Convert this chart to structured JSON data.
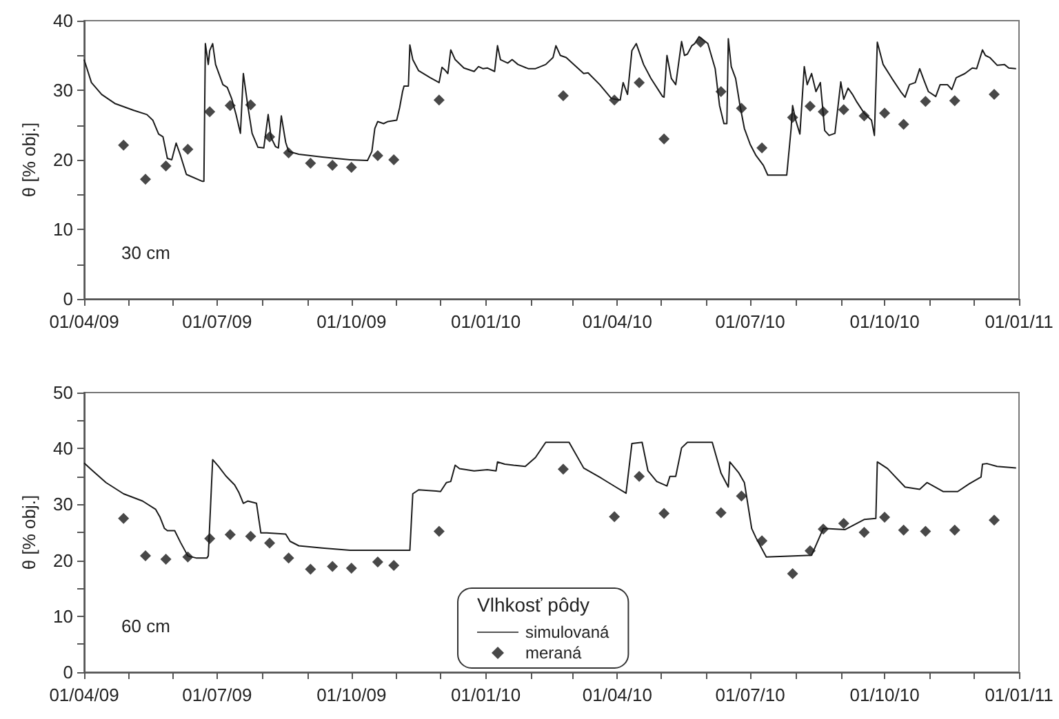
{
  "chart_data": [
    {
      "type": "line",
      "ylabel": "θ [% obj.]",
      "annotations": [
        "30 cm"
      ],
      "xlim": [
        "2009-04-01",
        "2011-01-01"
      ],
      "xticks": [
        {
          "value": "2009-04-01",
          "label": "01/04/09"
        },
        {
          "value": "2009-05-01",
          "label": null
        },
        {
          "value": "2009-06-01",
          "label": null
        },
        {
          "value": "2009-07-01",
          "label": "01/07/09"
        },
        {
          "value": "2009-08-01",
          "label": null
        },
        {
          "value": "2009-09-01",
          "label": null
        },
        {
          "value": "2009-10-01",
          "label": "01/10/09"
        },
        {
          "value": "2009-11-01",
          "label": null
        },
        {
          "value": "2009-12-01",
          "label": null
        },
        {
          "value": "2010-01-01",
          "label": "01/01/10"
        },
        {
          "value": "2010-02-01",
          "label": null
        },
        {
          "value": "2010-03-01",
          "label": null
        },
        {
          "value": "2010-04-01",
          "label": "01/04/10"
        },
        {
          "value": "2010-05-01",
          "label": null
        },
        {
          "value": "2010-06-01",
          "label": null
        },
        {
          "value": "2010-07-01",
          "label": "01/07/10"
        },
        {
          "value": "2010-08-01",
          "label": null
        },
        {
          "value": "2010-09-01",
          "label": null
        },
        {
          "value": "2010-10-01",
          "label": "01/10/10"
        },
        {
          "value": "2010-11-01",
          "label": null
        },
        {
          "value": "2010-12-01",
          "label": null
        },
        {
          "value": "2011-01-01",
          "label": "01/01/11"
        }
      ],
      "ylim": [
        0,
        40
      ],
      "yticks": [
        0,
        {
          "value": 5,
          "label": null
        },
        10,
        {
          "value": 15,
          "label": null
        },
        20,
        {
          "value": 25,
          "label": null
        },
        30,
        {
          "value": 35,
          "label": null
        },
        40
      ],
      "grid": false,
      "legend": false,
      "series": [
        {
          "type": "line",
          "color": "#1a1a1a",
          "marker": "none",
          "x": [
            "2009-04-01",
            "2009-04-06",
            "2009-04-13",
            "2009-04-22",
            "2009-05-05",
            "2009-05-14",
            "2009-05-18",
            "2009-05-22",
            "2009-05-25",
            "2009-05-28",
            "2009-05-31",
            "2009-06-03",
            "2009-06-06",
            "2009-06-10",
            "2009-06-21",
            "2009-06-22",
            "2009-06-23",
            "2009-06-25",
            "2009-06-26",
            "2009-06-28",
            "2009-06-30",
            "2009-07-05",
            "2009-07-08",
            "2009-07-11",
            "2009-07-14",
            "2009-07-17",
            "2009-07-19",
            "2009-07-22",
            "2009-07-25",
            "2009-07-29",
            "2009-08-02",
            "2009-08-05",
            "2009-08-07",
            "2009-08-10",
            "2009-08-12",
            "2009-08-14",
            "2009-08-17",
            "2009-08-19",
            "2009-08-26",
            "2009-09-11",
            "2009-09-30",
            "2009-10-12",
            "2009-10-15",
            "2009-10-17",
            "2009-10-19",
            "2009-10-23",
            "2009-10-26",
            "2009-11-01",
            "2009-11-03",
            "2009-11-05",
            "2009-11-06",
            "2009-11-09",
            "2009-11-10",
            "2009-11-12",
            "2009-11-16",
            "2009-11-24",
            "2009-11-30",
            "2009-12-02",
            "2009-12-04",
            "2009-12-06",
            "2009-12-08",
            "2009-12-11",
            "2009-12-17",
            "2009-12-24",
            "2009-12-27",
            "2009-12-30",
            "2010-01-02",
            "2010-01-07",
            "2010-01-09",
            "2010-01-11",
            "2010-01-16",
            "2010-01-19",
            "2010-01-23",
            "2010-01-30",
            "2010-02-04",
            "2010-02-11",
            "2010-02-16",
            "2010-02-18",
            "2010-02-21",
            "2010-02-25",
            "2010-03-09",
            "2010-03-12",
            "2010-03-20",
            "2010-03-28",
            "2010-04-03",
            "2010-04-05",
            "2010-04-08",
            "2010-04-11",
            "2010-04-14",
            "2010-04-19",
            "2010-04-24",
            "2010-05-02",
            "2010-05-03",
            "2010-05-05",
            "2010-05-08",
            "2010-05-11",
            "2010-05-15",
            "2010-05-17",
            "2010-05-19",
            "2010-05-22",
            "2010-05-24",
            "2010-05-27",
            "2010-06-02",
            "2010-06-07",
            "2010-06-10",
            "2010-06-13",
            "2010-06-15",
            "2010-06-16",
            "2010-06-18",
            "2010-06-21",
            "2010-06-24",
            "2010-06-27",
            "2010-07-01",
            "2010-07-05",
            "2010-07-10",
            "2010-07-13",
            "2010-07-26",
            "2010-07-29",
            "2010-07-30",
            "2010-08-01",
            "2010-08-04",
            "2010-08-07",
            "2010-08-09",
            "2010-08-12",
            "2010-08-15",
            "2010-08-18",
            "2010-08-21",
            "2010-08-24",
            "2010-08-28",
            "2010-09-01",
            "2010-09-03",
            "2010-09-06",
            "2010-09-09",
            "2010-09-12",
            "2010-09-17",
            "2010-09-22",
            "2010-09-24",
            "2010-09-26",
            "2010-09-30",
            "2010-10-06",
            "2010-10-12",
            "2010-10-15",
            "2010-10-18",
            "2010-10-22",
            "2010-10-25",
            "2010-10-28",
            "2010-10-31",
            "2010-11-05",
            "2010-11-08",
            "2010-11-13",
            "2010-11-16",
            "2010-11-19",
            "2010-11-25",
            "2010-11-30",
            "2010-12-03",
            "2010-12-07",
            "2010-12-09",
            "2010-12-12",
            "2010-12-17",
            "2010-12-22",
            "2010-12-25",
            "2010-12-30"
          ],
          "values": [
            34.4,
            31.1,
            29.4,
            28.1,
            27.1,
            26.5,
            25.7,
            23.7,
            23.3,
            20.2,
            20.0,
            22.4,
            20.6,
            17.9,
            16.9,
            16.9,
            36.7,
            33.7,
            35.7,
            36.7,
            33.7,
            30.8,
            30.4,
            28.8,
            26.5,
            23.8,
            32.4,
            27.8,
            23.8,
            21.8,
            21.7,
            26.5,
            23.2,
            21.9,
            21.7,
            26.3,
            22.5,
            21.2,
            20.8,
            20.4,
            20.0,
            19.9,
            21.2,
            24.5,
            25.5,
            25.2,
            25.5,
            25.7,
            27.5,
            29.8,
            30.6,
            30.6,
            36.5,
            34.4,
            32.8,
            31.8,
            31.1,
            33.3,
            32.9,
            32.4,
            35.8,
            34.4,
            33.2,
            32.7,
            33.4,
            33.1,
            33.2,
            32.7,
            36.4,
            34.4,
            33.9,
            34.4,
            33.7,
            33.1,
            33.1,
            33.7,
            34.7,
            36.4,
            35.0,
            34.7,
            32.4,
            32.5,
            30.8,
            28.8,
            28.6,
            31.1,
            29.4,
            35.7,
            36.7,
            33.7,
            31.7,
            29.1,
            29.0,
            35.0,
            31.7,
            30.8,
            37.0,
            35.0,
            35.2,
            36.4,
            36.7,
            37.7,
            36.7,
            33.1,
            27.8,
            25.2,
            25.2,
            37.4,
            33.4,
            31.7,
            27.8,
            24.5,
            22.2,
            20.6,
            19.2,
            17.8,
            17.8,
            24.5,
            27.8,
            25.8,
            23.7,
            33.4,
            30.8,
            32.4,
            29.8,
            31.1,
            24.2,
            23.5,
            23.8,
            31.2,
            28.7,
            30.3,
            29.4,
            28.3,
            26.7,
            25.7,
            23.5,
            36.9,
            33.7,
            31.7,
            29.8,
            29.0,
            30.8,
            31.1,
            33.1,
            31.4,
            29.8,
            29.1,
            30.8,
            30.8,
            30.1,
            31.8,
            32.4,
            33.2,
            33.1,
            35.8,
            35.0,
            34.7,
            33.6,
            33.7,
            33.2,
            33.1
          ]
        },
        {
          "type": "scatter",
          "color": "#1a1a1a",
          "marker": "diamond",
          "x": [
            "2009-04-28",
            "2009-05-13",
            "2009-05-27",
            "2009-06-11",
            "2009-06-26",
            "2009-07-10",
            "2009-07-24",
            "2009-08-06",
            "2009-08-19",
            "2009-09-03",
            "2009-09-18",
            "2009-10-01",
            "2009-10-19",
            "2009-10-30",
            "2009-11-30",
            "2010-02-23",
            "2010-03-30",
            "2010-04-16",
            "2010-05-03",
            "2010-05-28",
            "2010-06-11",
            "2010-06-25",
            "2010-07-09",
            "2010-07-30",
            "2010-08-11",
            "2010-08-20",
            "2010-09-03",
            "2010-09-17",
            "2010-10-01",
            "2010-10-14",
            "2010-10-29",
            "2010-11-18",
            "2010-12-15"
          ],
          "values": [
            22.1,
            17.2,
            19.1,
            21.5,
            26.9,
            27.8,
            27.9,
            23.3,
            21.0,
            19.5,
            19.2,
            18.9,
            20.6,
            20.0,
            28.6,
            29.2,
            28.6,
            31.1,
            23.0,
            36.9,
            29.8,
            27.4,
            21.7,
            26.1,
            27.7,
            26.9,
            27.2,
            26.3,
            26.7,
            25.1,
            28.4,
            28.5,
            29.4
          ]
        }
      ]
    },
    {
      "type": "line",
      "ylabel": "θ [% obj.]",
      "annotations": [
        "60 cm"
      ],
      "legend_title": "Vlhkosť pôdy",
      "xlim": [
        "2009-04-01",
        "2011-01-01"
      ],
      "xticks": [
        {
          "value": "2009-04-01",
          "label": "01/04/09"
        },
        {
          "value": "2009-05-01",
          "label": null
        },
        {
          "value": "2009-06-01",
          "label": null
        },
        {
          "value": "2009-07-01",
          "label": "01/07/09"
        },
        {
          "value": "2009-08-01",
          "label": null
        },
        {
          "value": "2009-09-01",
          "label": null
        },
        {
          "value": "2009-10-01",
          "label": "01/10/09"
        },
        {
          "value": "2009-11-01",
          "label": null
        },
        {
          "value": "2009-12-01",
          "label": null
        },
        {
          "value": "2010-01-01",
          "label": "01/01/10"
        },
        {
          "value": "2010-02-01",
          "label": null
        },
        {
          "value": "2010-03-01",
          "label": null
        },
        {
          "value": "2010-04-01",
          "label": "01/04/10"
        },
        {
          "value": "2010-05-01",
          "label": null
        },
        {
          "value": "2010-06-01",
          "label": null
        },
        {
          "value": "2010-07-01",
          "label": "01/07/10"
        },
        {
          "value": "2010-08-01",
          "label": null
        },
        {
          "value": "2010-09-01",
          "label": null
        },
        {
          "value": "2010-10-01",
          "label": "01/10/10"
        },
        {
          "value": "2010-11-01",
          "label": null
        },
        {
          "value": "2010-12-01",
          "label": null
        },
        {
          "value": "2011-01-01",
          "label": "01/01/11"
        }
      ],
      "ylim": [
        0,
        50
      ],
      "yticks": [
        0,
        {
          "value": 5,
          "label": null
        },
        10,
        {
          "value": 15,
          "label": null
        },
        20,
        {
          "value": 25,
          "label": null
        },
        30,
        {
          "value": 35,
          "label": null
        },
        40,
        {
          "value": 45,
          "label": null
        },
        50
      ],
      "grid": false,
      "legend": "bottom",
      "series": [
        {
          "type": "line",
          "name": "simulovaná",
          "color": "#1a1a1a",
          "marker": "none",
          "x": [
            "2009-04-01",
            "2009-04-06",
            "2009-04-16",
            "2009-04-28",
            "2009-05-11",
            "2009-05-20",
            "2009-05-23",
            "2009-05-26",
            "2009-05-28",
            "2009-06-02",
            "2009-06-06",
            "2009-06-11",
            "2009-06-17",
            "2009-06-24",
            "2009-06-25",
            "2009-06-28",
            "2009-07-02",
            "2009-07-07",
            "2009-07-13",
            "2009-07-16",
            "2009-07-19",
            "2009-07-22",
            "2009-07-28",
            "2009-07-31",
            "2009-08-04",
            "2009-08-17",
            "2009-08-20",
            "2009-08-26",
            "2009-09-11",
            "2009-09-30",
            "2009-11-10",
            "2009-11-12",
            "2009-11-16",
            "2009-11-28",
            "2009-12-01",
            "2009-12-05",
            "2009-12-08",
            "2009-12-11",
            "2009-12-14",
            "2009-12-24",
            "2010-01-02",
            "2010-01-08",
            "2010-01-09",
            "2010-01-14",
            "2010-01-20",
            "2010-01-28",
            "2010-02-04",
            "2010-02-11",
            "2010-02-27",
            "2010-03-09",
            "2010-03-21",
            "2010-03-31",
            "2010-04-07",
            "2010-04-11",
            "2010-04-18",
            "2010-04-22",
            "2010-04-28",
            "2010-05-05",
            "2010-05-07",
            "2010-05-11",
            "2010-05-15",
            "2010-05-19",
            "2010-06-05",
            "2010-06-11",
            "2010-06-16",
            "2010-06-17",
            "2010-06-23",
            "2010-06-27",
            "2010-07-02",
            "2010-07-05",
            "2010-07-12",
            "2010-08-12",
            "2010-08-20",
            "2010-09-04",
            "2010-09-17",
            "2010-09-25",
            "2010-09-26",
            "2010-10-03",
            "2010-10-15",
            "2010-10-25",
            "2010-10-30",
            "2010-11-06",
            "2010-11-10",
            "2010-11-20",
            "2010-11-28",
            "2010-12-06",
            "2010-12-07",
            "2010-12-10",
            "2010-12-17",
            "2010-12-30"
          ],
          "values": [
            37.4,
            36.2,
            33.9,
            31.9,
            30.6,
            29.1,
            27.7,
            25.7,
            25.3,
            25.3,
            23.2,
            20.8,
            20.4,
            20.4,
            20.8,
            38.0,
            36.8,
            35.1,
            33.5,
            32.1,
            30.2,
            30.6,
            30.2,
            24.9,
            24.9,
            24.7,
            23.4,
            22.6,
            22.2,
            21.8,
            21.8,
            31.9,
            32.6,
            32.4,
            32.3,
            33.9,
            34.1,
            37.0,
            36.4,
            36.0,
            36.2,
            36.0,
            37.6,
            37.2,
            37.0,
            36.8,
            38.4,
            41.1,
            41.1,
            36.5,
            34.7,
            33.1,
            32.0,
            40.9,
            41.1,
            36.0,
            34.1,
            33.3,
            35.0,
            35.0,
            40.1,
            41.1,
            41.1,
            35.6,
            33.1,
            37.6,
            35.7,
            33.9,
            25.7,
            24.0,
            20.6,
            20.9,
            25.7,
            25.5,
            27.3,
            27.5,
            37.6,
            36.4,
            33.1,
            32.7,
            33.9,
            32.9,
            32.3,
            32.3,
            33.7,
            34.9,
            37.2,
            37.3,
            36.8,
            36.5
          ]
        },
        {
          "type": "scatter",
          "name": "meraná",
          "color": "#1a1a1a",
          "marker": "diamond",
          "x": [
            "2009-04-28",
            "2009-05-13",
            "2009-05-27",
            "2009-06-11",
            "2009-06-26",
            "2009-07-10",
            "2009-07-24",
            "2009-08-06",
            "2009-08-19",
            "2009-09-03",
            "2009-09-18",
            "2009-10-01",
            "2009-10-19",
            "2009-10-30",
            "2009-11-30",
            "2010-02-23",
            "2010-03-30",
            "2010-04-16",
            "2010-05-03",
            "2010-06-11",
            "2010-06-25",
            "2010-07-09",
            "2010-07-30",
            "2010-08-11",
            "2010-08-20",
            "2010-09-03",
            "2010-09-17",
            "2010-10-01",
            "2010-10-14",
            "2010-10-29",
            "2010-11-18",
            "2010-12-15"
          ],
          "values": [
            27.5,
            20.8,
            20.2,
            20.6,
            23.9,
            24.6,
            24.3,
            23.1,
            20.4,
            18.4,
            18.9,
            18.6,
            19.7,
            19.1,
            25.2,
            36.3,
            27.8,
            35.0,
            28.4,
            28.5,
            31.5,
            23.5,
            17.6,
            21.7,
            25.6,
            26.6,
            25.0,
            27.7,
            25.4,
            25.2,
            25.4,
            27.2
          ]
        }
      ]
    }
  ]
}
